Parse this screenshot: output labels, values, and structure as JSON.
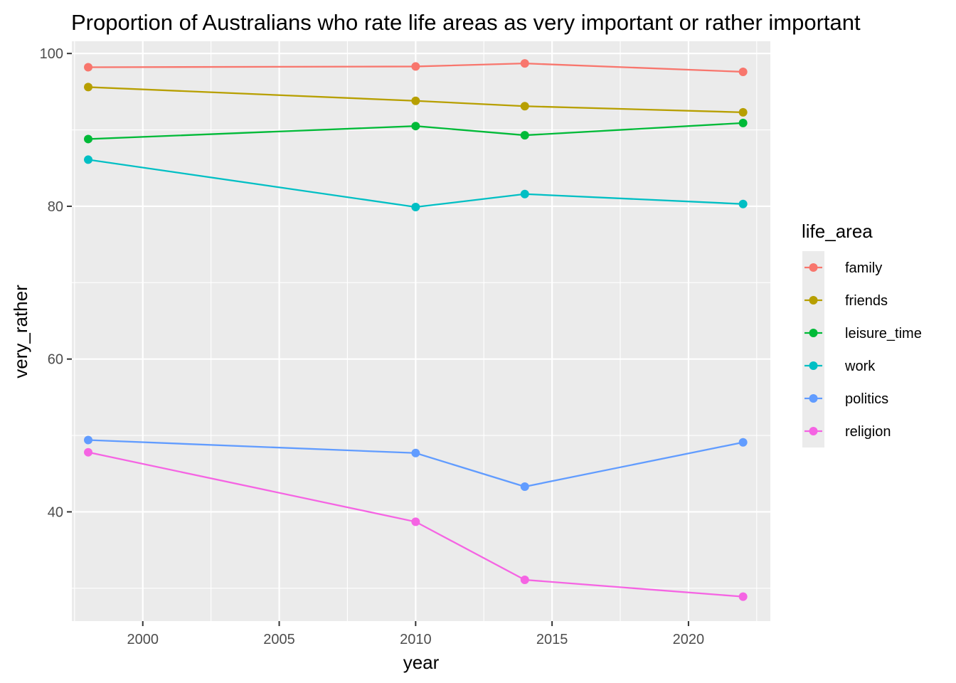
{
  "chart_data": {
    "type": "line",
    "title": "Proportion of Australians who rate life areas as very important or rather important",
    "xlabel": "year",
    "ylabel": "very_rather",
    "x": [
      1998,
      2010,
      2014,
      2022
    ],
    "xlim": [
      1997.4,
      2023.0
    ],
    "ylim": [
      25.7,
      101.6
    ],
    "xticks": [
      2000,
      2005,
      2010,
      2015,
      2020
    ],
    "yticks": [
      40,
      60,
      80,
      100
    ],
    "grid": true,
    "legend": {
      "title": "life_area",
      "position": "right"
    },
    "series": [
      {
        "name": "family",
        "color": "#F8766D",
        "values": [
          98.2,
          98.3,
          98.7,
          97.6
        ]
      },
      {
        "name": "friends",
        "color": "#B79F00",
        "values": [
          95.6,
          93.8,
          93.1,
          92.3
        ]
      },
      {
        "name": "leisure_time",
        "color": "#00BA38",
        "values": [
          88.8,
          90.5,
          89.3,
          90.9
        ]
      },
      {
        "name": "work",
        "color": "#00BFC4",
        "values": [
          86.1,
          79.9,
          81.6,
          80.3
        ]
      },
      {
        "name": "politics",
        "color": "#619CFF",
        "values": [
          49.4,
          47.7,
          43.3,
          49.1
        ]
      },
      {
        "name": "religion",
        "color": "#F564E3",
        "values": [
          47.8,
          38.7,
          31.1,
          28.9
        ]
      }
    ]
  }
}
